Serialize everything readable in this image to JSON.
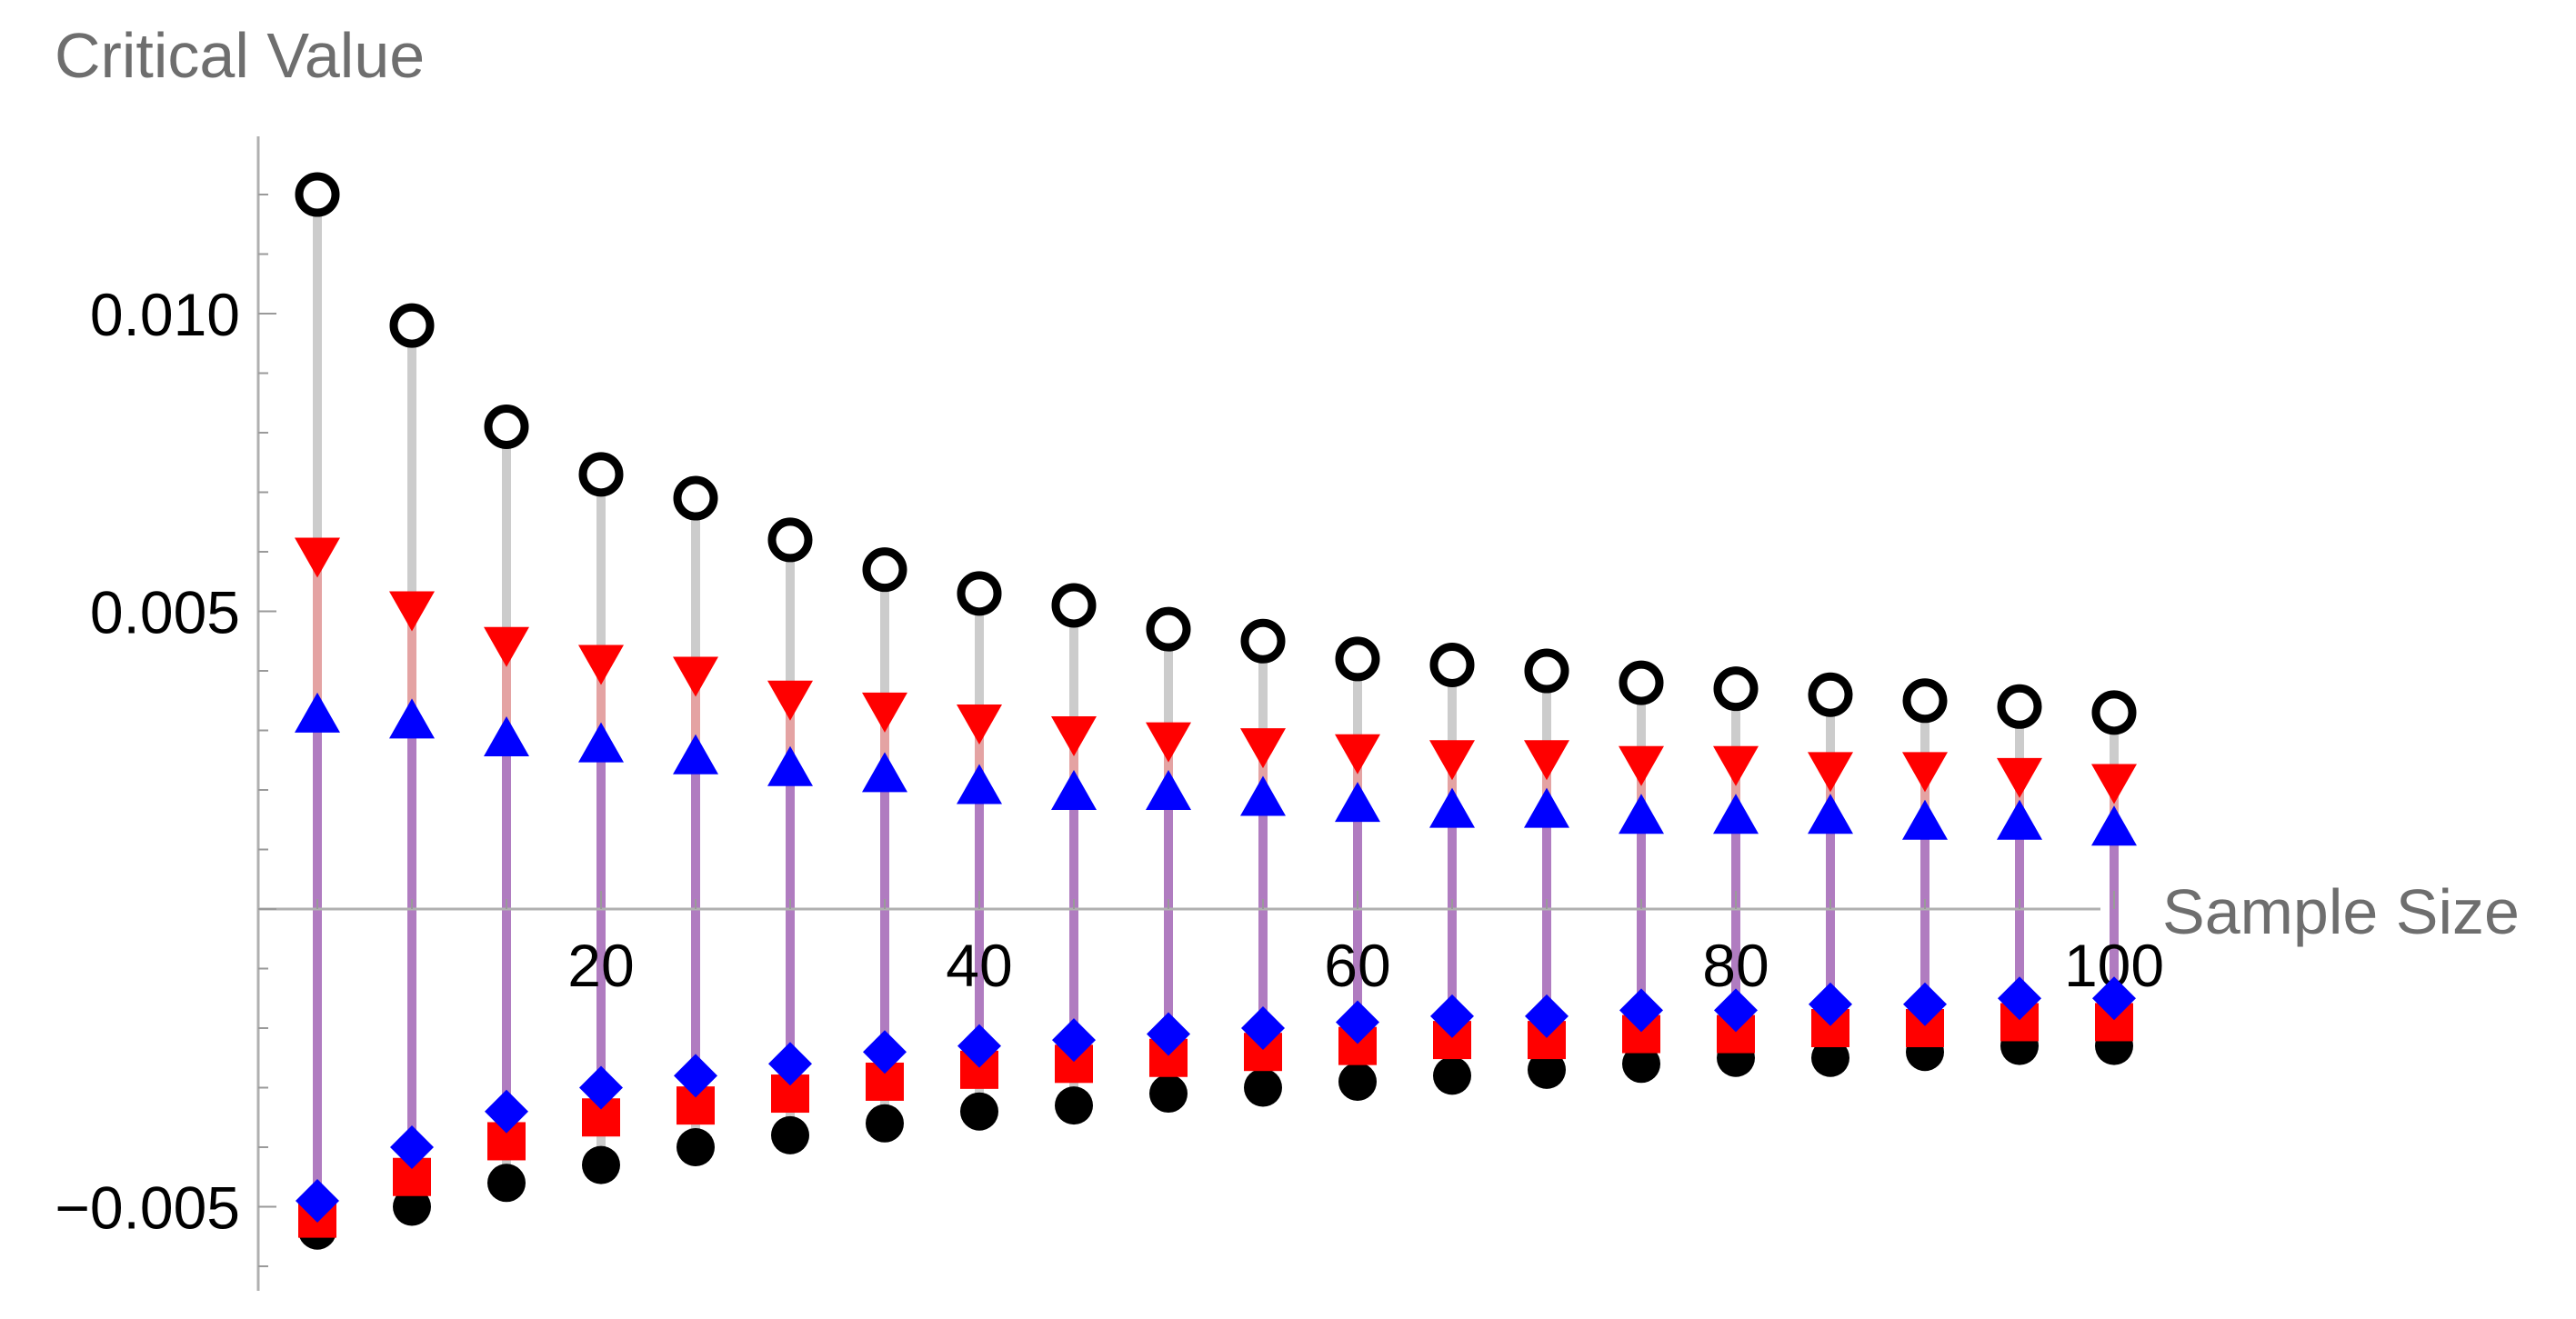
{
  "chart_data": {
    "type": "scatter",
    "xlabel": "Sample Size",
    "ylabel": "Critical Value",
    "xlim": [
      0,
      100
    ],
    "ylim": [
      -0.0065,
      0.0135
    ],
    "x_ticks": [
      20,
      40,
      60,
      80,
      100
    ],
    "y_ticks": [
      -0.005,
      0.005,
      0.01
    ],
    "x_tick_labels": [
      "20",
      "40",
      "60",
      "80",
      "100"
    ],
    "y_tick_labels": [
      "−0.005",
      "0.005",
      "0.010"
    ],
    "grid": false,
    "x": [
      5,
      10,
      15,
      20,
      25,
      30,
      35,
      40,
      45,
      50,
      55,
      60,
      65,
      70,
      75,
      80,
      85,
      90,
      95,
      100
    ],
    "series": [
      {
        "marker": "open-circle",
        "color": "#000000",
        "values": [
          0.012,
          0.0098,
          0.0081,
          0.0073,
          0.0069,
          0.0062,
          0.0057,
          0.0053,
          0.0051,
          0.0047,
          0.0045,
          0.0042,
          0.0041,
          0.004,
          0.0038,
          0.0037,
          0.0036,
          0.0035,
          0.0034,
          0.0033
        ]
      },
      {
        "marker": "down-triangle",
        "color": "#ff0000",
        "values": [
          0.0059,
          0.005,
          0.0044,
          0.0041,
          0.0039,
          0.0035,
          0.0033,
          0.0031,
          0.0029,
          0.0028,
          0.0027,
          0.0026,
          0.0025,
          0.0025,
          0.0024,
          0.0024,
          0.0023,
          0.0023,
          0.0022,
          0.0021
        ]
      },
      {
        "marker": "up-triangle",
        "color": "#0000ff",
        "values": [
          0.0033,
          0.0032,
          0.0029,
          0.0028,
          0.0026,
          0.0024,
          0.0023,
          0.0021,
          0.002,
          0.002,
          0.0019,
          0.0018,
          0.0017,
          0.0017,
          0.0016,
          0.0016,
          0.0016,
          0.0015,
          0.0015,
          0.0014
        ]
      },
      {
        "marker": "diamond",
        "color": "#0000ff",
        "values": [
          -0.0049,
          -0.004,
          -0.0034,
          -0.003,
          -0.0028,
          -0.0026,
          -0.0024,
          -0.0023,
          -0.0022,
          -0.0021,
          -0.002,
          -0.0019,
          -0.0018,
          -0.0018,
          -0.0017,
          -0.0017,
          -0.0016,
          -0.0016,
          -0.0015,
          -0.0015
        ]
      },
      {
        "marker": "square",
        "color": "#ff0000",
        "values": [
          -0.0052,
          -0.0045,
          -0.0039,
          -0.0035,
          -0.0033,
          -0.0031,
          -0.0029,
          -0.0027,
          -0.0026,
          -0.0025,
          -0.0024,
          -0.0023,
          -0.0022,
          -0.0022,
          -0.0021,
          -0.0021,
          -0.002,
          -0.002,
          -0.0019,
          -0.0019
        ]
      },
      {
        "marker": "filled-circle",
        "color": "#000000",
        "values": [
          -0.0054,
          -0.005,
          -0.0046,
          -0.0043,
          -0.004,
          -0.0038,
          -0.0036,
          -0.0034,
          -0.0033,
          -0.0031,
          -0.003,
          -0.0029,
          -0.0028,
          -0.0027,
          -0.0026,
          -0.0025,
          -0.0025,
          -0.0024,
          -0.0023,
          -0.0023
        ]
      }
    ],
    "stem_colors": {
      "outer": "#cccccc",
      "middle": "#e4a3a3",
      "inner": "#b07cc0"
    }
  }
}
